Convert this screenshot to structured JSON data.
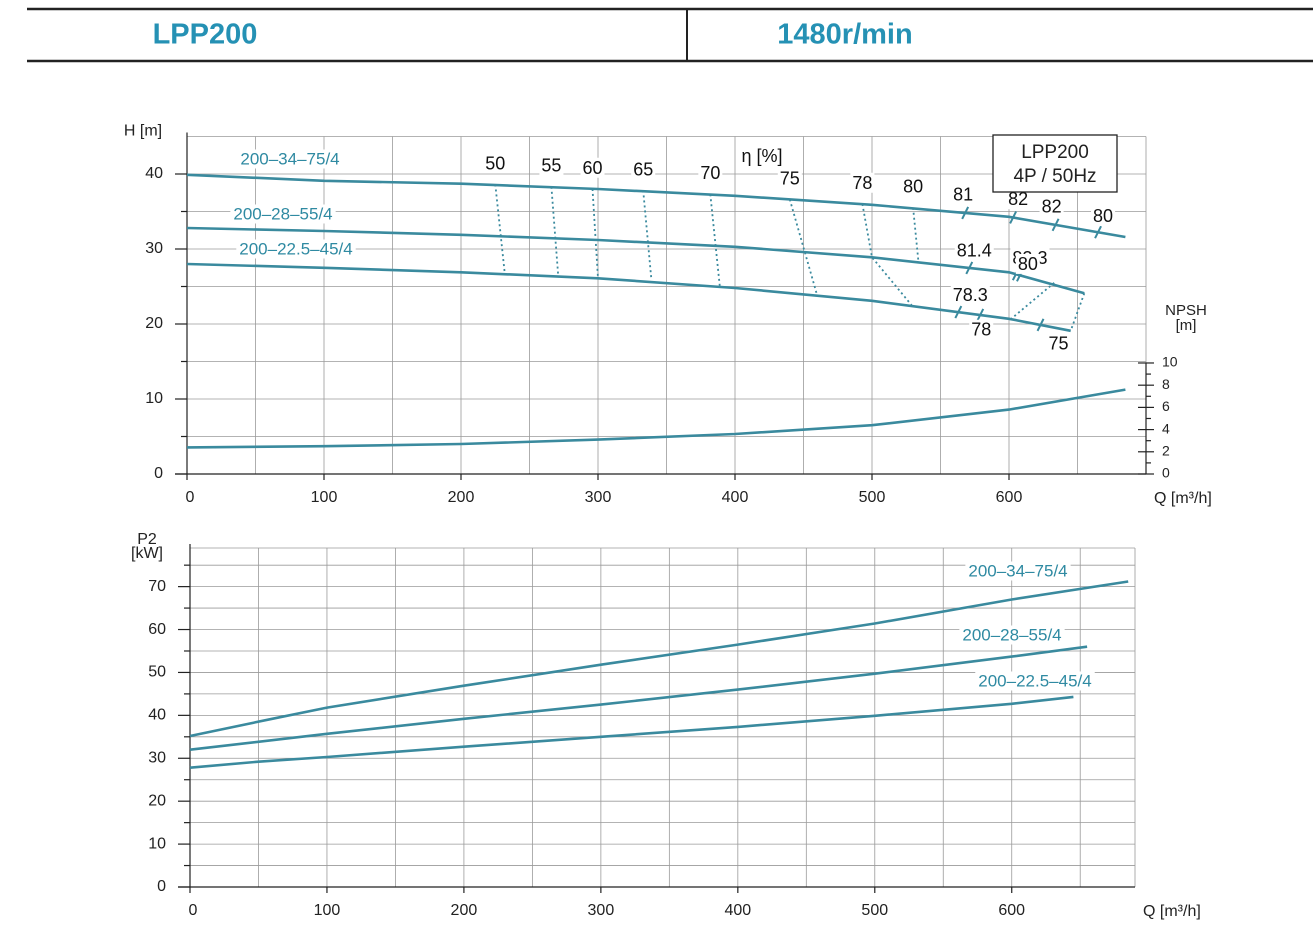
{
  "header": {
    "model": "LPP200",
    "speed": "1480r/min"
  },
  "chart_data": [
    {
      "type": "line",
      "ylabel": "H [m]",
      "xlabel": "Q [m³/h]",
      "y2label": [
        "NPSH",
        "[m]"
      ],
      "xlim": [
        0,
        700
      ],
      "ylim": [
        0,
        45
      ],
      "y2lim": [
        0,
        30.4
      ],
      "xticks": [
        0,
        100,
        200,
        300,
        400,
        500,
        600
      ],
      "yticks": [
        0,
        10,
        20,
        30,
        40
      ],
      "y2ticks": [
        0,
        2,
        4,
        6,
        8,
        10
      ],
      "grid": true,
      "series": [
        {
          "name": "200–34–75/4",
          "color": "#3a8a9e",
          "x": [
            0,
            100,
            200,
            300,
            400,
            500,
            600,
            685
          ],
          "values": [
            39.9,
            39.1,
            38.7,
            38.0,
            37.1,
            35.9,
            34.3,
            31.6
          ]
        },
        {
          "name": "200–28–55/4",
          "color": "#3a8a9e",
          "x": [
            0,
            100,
            200,
            300,
            400,
            500,
            600,
            655
          ],
          "values": [
            32.8,
            32.4,
            31.9,
            31.2,
            30.3,
            28.9,
            26.9,
            24.1
          ]
        },
        {
          "name": "200–22.5–45/4",
          "color": "#3a8a9e",
          "x": [
            0,
            100,
            200,
            300,
            400,
            500,
            600,
            645
          ],
          "values": [
            28.0,
            27.5,
            26.9,
            26.1,
            24.8,
            23.1,
            20.7,
            19.1
          ]
        },
        {
          "color": "#3a8a9e",
          "axis": "y2",
          "x": [
            0,
            100,
            200,
            300,
            400,
            500,
            600,
            685
          ],
          "values": [
            2.4,
            2.5,
            2.7,
            3.1,
            3.6,
            4.4,
            5.8,
            7.6
          ]
        }
      ],
      "eta_label": "η [%]",
      "info_box": [
        "LPP200",
        "4P / 50Hz"
      ],
      "efficiency_contours": [
        {
          "label": "50",
          "x": [
            225,
            232
          ],
          "values": [
            38.6,
            26.7
          ]
        },
        {
          "label": "55",
          "x": [
            266,
            271
          ],
          "values": [
            38.3,
            26.3
          ]
        },
        {
          "label": "60",
          "x": [
            296,
            300
          ],
          "values": [
            38.0,
            26.1
          ]
        },
        {
          "label": "65",
          "x": [
            333,
            339
          ],
          "values": [
            37.8,
            25.9
          ]
        },
        {
          "label": "70",
          "x": [
            382,
            389
          ],
          "values": [
            37.3,
            24.9
          ]
        },
        {
          "label": "75",
          "x": [
            440,
            460
          ],
          "values": [
            36.6,
            23.8
          ]
        },
        {
          "label": "78",
          "x": [
            493,
            500,
            529
          ],
          "values": [
            36.0,
            28.9,
            22.5
          ]
        },
        {
          "label": "80",
          "x": [
            530,
            534
          ],
          "values": [
            35.5,
            28.1
          ]
        },
        {
          "label": null,
          "x": [
            633,
            601
          ],
          "values": [
            25.5,
            20.6
          ]
        },
        {
          "label": null,
          "x": [
            655,
            645
          ],
          "values": [
            24.1,
            19.1
          ]
        }
      ],
      "efficiency_marks": [
        {
          "label": "81",
          "series": 0,
          "x": 568
        },
        {
          "label": "82",
          "series": 0,
          "x": 603
        },
        {
          "label": "82",
          "series": 0,
          "x": 634
        },
        {
          "label": "80",
          "series": 0,
          "x": 665
        },
        {
          "label": "81.4",
          "series": 1,
          "x": 571
        },
        {
          "label": "82.3",
          "series": 1,
          "x": 608
        },
        {
          "label": "80",
          "series": 1,
          "x": 605
        },
        {
          "label": "78.3",
          "series": 2,
          "x": 563
        },
        {
          "label": "78",
          "series": 2,
          "x": 579
        },
        {
          "label": "75",
          "series": 2,
          "x": 623
        }
      ]
    },
    {
      "type": "line",
      "ylabel": [
        "P2",
        "[kW]"
      ],
      "xlabel": "Q [m³/h]",
      "xlim": [
        0,
        690
      ],
      "ylim": [
        0,
        79
      ],
      "xticks": [
        0,
        100,
        200,
        300,
        400,
        500,
        600
      ],
      "yticks": [
        0,
        10,
        20,
        30,
        40,
        50,
        60,
        70
      ],
      "grid": true,
      "series": [
        {
          "name": "200–34–75/4",
          "color": "#3a8a9e",
          "x": [
            0,
            60,
            100,
            200,
            300,
            400,
            500,
            600,
            685
          ],
          "values": [
            35.2,
            39.2,
            41.8,
            46.9,
            51.8,
            56.5,
            61.4,
            67.0,
            71.2
          ]
        },
        {
          "name": "200–28–55/4",
          "color": "#3a8a9e",
          "x": [
            0,
            100,
            200,
            300,
            400,
            500,
            600,
            655
          ],
          "values": [
            32.0,
            35.7,
            39.2,
            42.5,
            46.0,
            49.7,
            53.7,
            56.0
          ]
        },
        {
          "name": "200–22.5–45/4",
          "color": "#3a8a9e",
          "x": [
            0,
            50,
            100,
            200,
            300,
            400,
            500,
            600,
            645
          ],
          "values": [
            27.8,
            29.2,
            30.3,
            32.7,
            35.0,
            37.3,
            39.9,
            42.7,
            44.3
          ]
        }
      ]
    }
  ]
}
